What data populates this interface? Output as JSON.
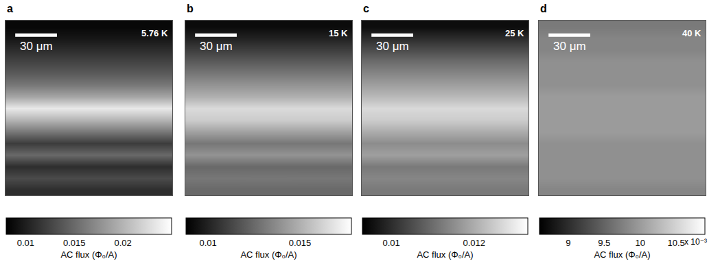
{
  "chart_data": [
    {
      "type": "heatmap",
      "panel": "a",
      "title": "5.76 K",
      "tick_labels": false,
      "x": [
        30,
        90
      ],
      "y": [
        4,
        12,
        20,
        28,
        36,
        44,
        52,
        60,
        68,
        76,
        84,
        92,
        100,
        108,
        116
      ],
      "xlim": [
        0,
        120
      ],
      "ylim": [
        0,
        120
      ],
      "scale_bar": {
        "length": 30,
        "label": "30 μm"
      },
      "z": [
        [
          0.0085,
          0.0085
        ],
        [
          0.0095,
          0.0095
        ],
        [
          0.011,
          0.011
        ],
        [
          0.0125,
          0.0125
        ],
        [
          0.014,
          0.014
        ],
        [
          0.016,
          0.016
        ],
        [
          0.019,
          0.019
        ],
        [
          0.0235,
          0.0235
        ],
        [
          0.02,
          0.02
        ],
        [
          0.016,
          0.016
        ],
        [
          0.012,
          0.012
        ],
        [
          0.015,
          0.015
        ],
        [
          0.011,
          0.011
        ],
        [
          0.013,
          0.013
        ],
        [
          0.011,
          0.011
        ]
      ],
      "colorbar": {
        "title": "AC flux (Φ₀/A)",
        "range": [
          0.008,
          0.025
        ],
        "ticks": [
          0.01,
          0.015,
          0.02
        ]
      }
    },
    {
      "type": "heatmap",
      "panel": "b",
      "title": "15 K",
      "tick_labels": false,
      "x": [
        30,
        90
      ],
      "y": [
        4,
        12,
        20,
        28,
        36,
        44,
        52,
        60,
        68,
        76,
        84,
        92,
        100,
        108,
        116
      ],
      "xlim": [
        0,
        120
      ],
      "ylim": [
        0,
        120
      ],
      "scale_bar": {
        "length": 30,
        "label": "30 μm"
      },
      "z": [
        [
          0.0092,
          0.0092
        ],
        [
          0.01,
          0.01
        ],
        [
          0.011,
          0.011
        ],
        [
          0.012,
          0.012
        ],
        [
          0.013,
          0.013
        ],
        [
          0.014,
          0.014
        ],
        [
          0.015,
          0.015
        ],
        [
          0.0165,
          0.0165
        ],
        [
          0.016,
          0.016
        ],
        [
          0.0145,
          0.0145
        ],
        [
          0.013,
          0.013
        ],
        [
          0.014,
          0.014
        ],
        [
          0.0125,
          0.0125
        ],
        [
          0.013,
          0.013
        ],
        [
          0.0125,
          0.0125
        ]
      ],
      "colorbar": {
        "title": "AC flux (Φ₀/A)",
        "range": [
          0.0088,
          0.0178
        ],
        "ticks": [
          0.01,
          0.015
        ]
      }
    },
    {
      "type": "heatmap",
      "panel": "c",
      "title": "25 K",
      "tick_labels": false,
      "x": [
        30,
        90
      ],
      "y": [
        4,
        12,
        20,
        28,
        36,
        44,
        52,
        60,
        68,
        76,
        84,
        92,
        100,
        108,
        116
      ],
      "xlim": [
        0,
        120
      ],
      "ylim": [
        0,
        120
      ],
      "scale_bar": {
        "length": 30,
        "label": "30 μm"
      },
      "z": [
        [
          0.0095,
          0.0095
        ],
        [
          0.01,
          0.01
        ],
        [
          0.0105,
          0.0105
        ],
        [
          0.011,
          0.011
        ],
        [
          0.0114,
          0.0114
        ],
        [
          0.0118,
          0.0118
        ],
        [
          0.0122,
          0.0122
        ],
        [
          0.0127,
          0.0127
        ],
        [
          0.0125,
          0.0125
        ],
        [
          0.012,
          0.012
        ],
        [
          0.0115,
          0.0115
        ],
        [
          0.0118,
          0.0118
        ],
        [
          0.0112,
          0.0112
        ],
        [
          0.0114,
          0.0114
        ],
        [
          0.0112,
          0.0112
        ]
      ],
      "colorbar": {
        "title": "AC flux (Φ₀/A)",
        "range": [
          0.0093,
          0.0133
        ],
        "ticks": [
          0.01,
          0.012
        ]
      }
    },
    {
      "type": "heatmap",
      "panel": "d",
      "title": "40 K",
      "tick_labels": false,
      "x": [
        30,
        90
      ],
      "y": [
        4,
        12,
        20,
        28,
        36,
        44,
        52,
        60,
        68,
        76,
        84,
        92,
        100,
        108,
        116
      ],
      "xlim": [
        0,
        120
      ],
      "ylim": [
        0,
        120
      ],
      "scale_bar": {
        "length": 30,
        "label": "30 μm"
      },
      "z": [
        [
          0.0097,
          0.0097
        ],
        [
          0.0098,
          0.0098
        ],
        [
          0.0098,
          0.0098
        ],
        [
          0.0099,
          0.0099
        ],
        [
          0.0099,
          0.0099
        ],
        [
          0.0099,
          0.0099
        ],
        [
          0.01,
          0.01
        ],
        [
          0.01,
          0.01
        ],
        [
          0.01,
          0.01
        ],
        [
          0.01,
          0.01
        ],
        [
          0.0099,
          0.0099
        ],
        [
          0.0099,
          0.0099
        ],
        [
          0.0099,
          0.0099
        ],
        [
          0.0099,
          0.0099
        ],
        [
          0.0098,
          0.0098
        ]
      ],
      "colorbar": {
        "title": "AC flux (Φ₀/A)",
        "range": [
          0.0086,
          0.0109
        ],
        "ticks": [
          {
            "value": 0.009,
            "label": "9"
          },
          {
            "value": 0.0095,
            "label": "9.5"
          },
          {
            "value": 0.01,
            "label": "10"
          },
          {
            "value": 0.0105,
            "label": "10.5"
          }
        ],
        "multiplier_label": "x 10⁻³"
      }
    }
  ]
}
